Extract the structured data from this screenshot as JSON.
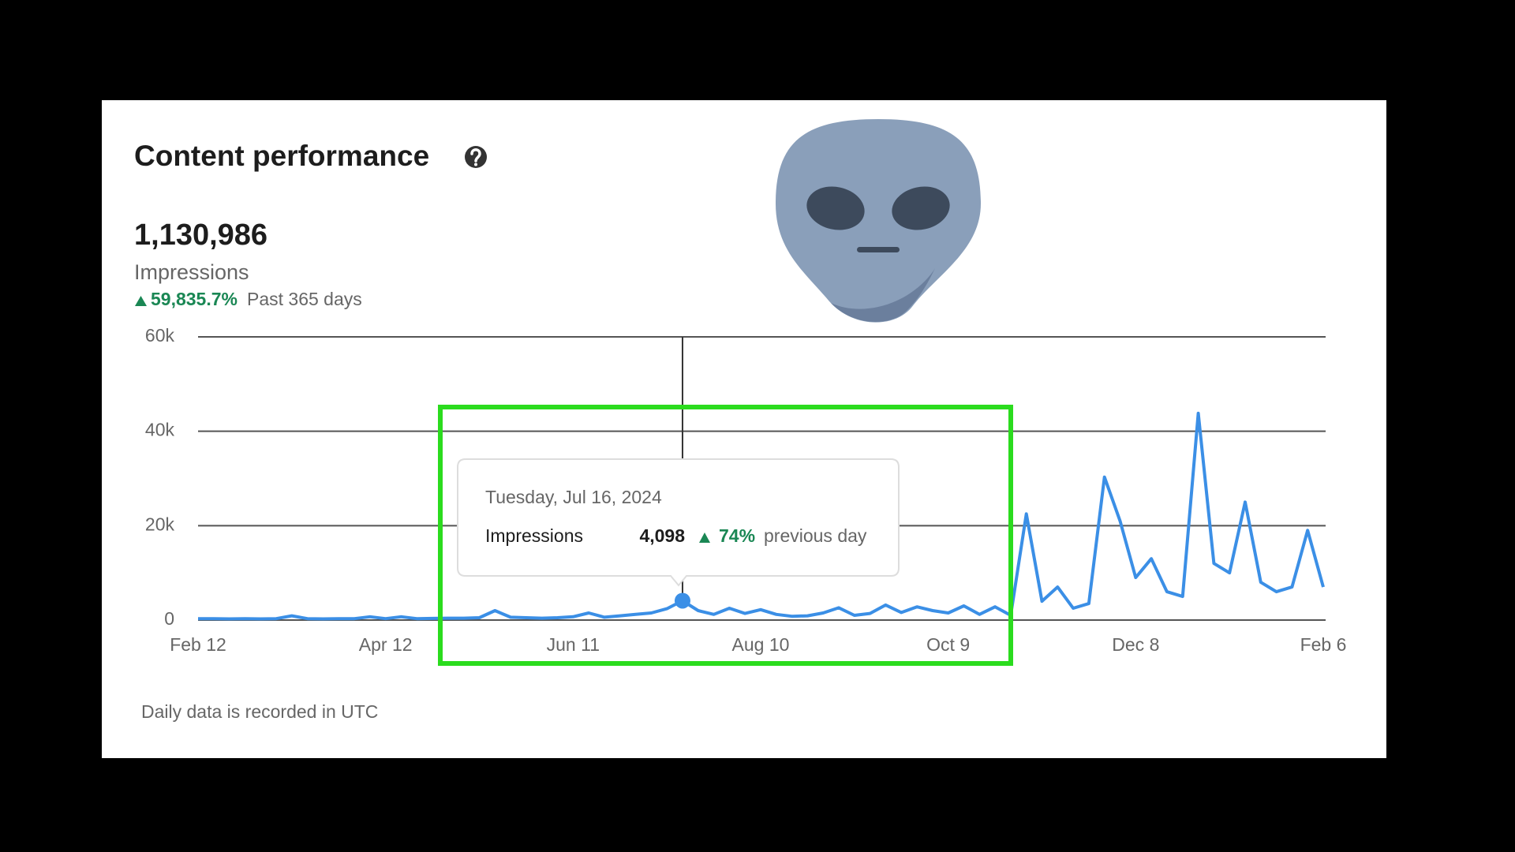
{
  "header": {
    "title": "Content performance",
    "total": "1,130,986",
    "metric": "Impressions",
    "change": "59,835.7%",
    "period": "Past 365 days"
  },
  "chart_data": {
    "type": "line",
    "categories": [
      "Feb 12",
      null,
      null,
      null,
      null,
      null,
      null,
      null,
      null,
      null,
      null,
      null,
      "Apr 12",
      null,
      null,
      null,
      null,
      null,
      null,
      null,
      null,
      null,
      null,
      null,
      "Jun 11",
      null,
      null,
      null,
      null,
      null,
      null,
      null,
      null,
      null,
      null,
      null,
      "Aug 10",
      null,
      null,
      null,
      null,
      null,
      null,
      null,
      null,
      null,
      null,
      null,
      "Oct 9",
      null,
      null,
      null,
      null,
      null,
      null,
      null,
      null,
      null,
      null,
      null,
      "Dec 8",
      null,
      null,
      null,
      null,
      null,
      null,
      null,
      null,
      null,
      null,
      null,
      "Feb 6"
    ],
    "series": [
      {
        "name": "Impressions",
        "color": "#3b8fe6",
        "values": [
          300,
          300,
          250,
          300,
          250,
          300,
          900,
          300,
          250,
          300,
          300,
          700,
          300,
          700,
          300,
          350,
          400,
          400,
          500,
          2000,
          600,
          500,
          400,
          500,
          700,
          1500,
          600,
          900,
          1200,
          1500,
          2400,
          4098,
          2000,
          1200,
          2500,
          1400,
          2200,
          1200,
          800,
          900,
          1500,
          2600,
          1000,
          1400,
          3200,
          1600,
          2800,
          2000,
          1500,
          3000,
          1200,
          2800,
          1000,
          22500,
          4000,
          7000,
          2500,
          3500,
          30300,
          21000,
          9000,
          13000,
          6000,
          5000,
          43800,
          12000,
          10000,
          25000,
          8000,
          6000,
          7000,
          19000,
          7000
        ]
      }
    ],
    "ylim": [
      0,
      60000
    ],
    "yticks": [
      0,
      {
        "value": 20000,
        "label": "20k"
      },
      {
        "value": 40000,
        "label": "40k"
      },
      {
        "value": 60000,
        "label": "60k"
      }
    ],
    "grid": true,
    "tooltip": {
      "date": "Tuesday, Jul 16, 2024",
      "value_label": "4,098",
      "change": "74%",
      "change_text": "previous day"
    },
    "footnote": "Daily data is recorded in UTC"
  }
}
